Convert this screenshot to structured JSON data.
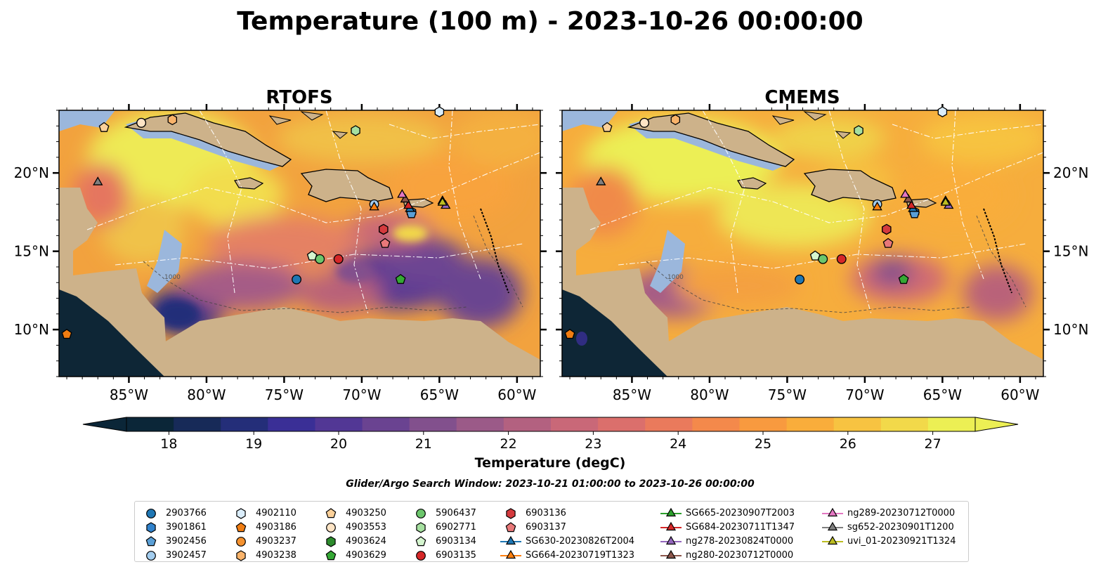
{
  "figure": {
    "title": "Temperature (100 m) - 2023-10-26 00:00:00",
    "colorbar_label": "Temperature (degC)",
    "subtitle": "Glider/Argo Search Window: 2023-10-21 01:00:00 to 2023-10-26 00:00:00"
  },
  "chart_data": [
    {
      "type": "heatmap",
      "title": "RTOFS",
      "x_ticks": [
        "85°W",
        "80°W",
        "75°W",
        "70°W",
        "65°W",
        "60°W"
      ],
      "y_ticks": [
        "10°N",
        "15°N",
        "20°N"
      ],
      "xlim": [
        -89.5,
        -58.5
      ],
      "ylim": [
        7,
        24
      ],
      "colormap": "thermal",
      "clim": [
        18,
        27
      ],
      "contour_label": "1000"
    },
    {
      "type": "heatmap",
      "title": "CMEMS",
      "x_ticks": [
        "85°W",
        "80°W",
        "75°W",
        "70°W",
        "65°W",
        "60°W"
      ],
      "y_ticks": [
        "10°N",
        "15°N",
        "20°N"
      ],
      "xlim": [
        -89.5,
        -58.5
      ],
      "ylim": [
        7,
        24
      ],
      "colormap": "thermal",
      "clim": [
        18,
        27
      ],
      "contour_label": "1000"
    }
  ],
  "colorbar": {
    "ticks": [
      "18",
      "19",
      "20",
      "21",
      "22",
      "23",
      "24",
      "25",
      "26",
      "27"
    ],
    "range": [
      17.5,
      27.5
    ],
    "colors": [
      "#0b2638",
      "#172a58",
      "#242e79",
      "#3a2f96",
      "#523795",
      "#6a4391",
      "#82508d",
      "#9b5a88",
      "#b36180",
      "#c96878",
      "#db6f6c",
      "#ea7a5c",
      "#f4894b",
      "#f89a3f",
      "#f9ad3b",
      "#f7c341",
      "#f2d94a",
      "#ecef54"
    ]
  },
  "legend": {
    "items": [
      {
        "label": "2903766",
        "marker": "circle",
        "color": "#1f77b4"
      },
      {
        "label": "3901861",
        "marker": "hexagon",
        "color": "#3182cc"
      },
      {
        "label": "3902456",
        "marker": "pentagon",
        "color": "#5a9fd6"
      },
      {
        "label": "3902457",
        "marker": "circle",
        "color": "#a3cdef"
      },
      {
        "label": "4902110",
        "marker": "hexagon",
        "color": "#dbeefc"
      },
      {
        "label": "4903186",
        "marker": "pentagon",
        "color": "#f07d12"
      },
      {
        "label": "4903237",
        "marker": "circle",
        "color": "#f5922f"
      },
      {
        "label": "4903238",
        "marker": "hexagon",
        "color": "#f9b36a"
      },
      {
        "label": "4903250",
        "marker": "pentagon",
        "color": "#fcd19a"
      },
      {
        "label": "4903553",
        "marker": "circle",
        "color": "#fde4c5"
      },
      {
        "label": "4903624",
        "marker": "hexagon",
        "color": "#2d8b2d"
      },
      {
        "label": "4903629",
        "marker": "pentagon",
        "color": "#35a835"
      },
      {
        "label": "5906437",
        "marker": "circle",
        "color": "#6cc66c"
      },
      {
        "label": "6902771",
        "marker": "hexagon",
        "color": "#a6e0a0"
      },
      {
        "label": "6903134",
        "marker": "pentagon",
        "color": "#d5f5cf"
      },
      {
        "label": "6903135",
        "marker": "circle",
        "color": "#d62728"
      },
      {
        "label": "6903136",
        "marker": "hexagon",
        "color": "#d43a3e"
      },
      {
        "label": "6903137",
        "marker": "pentagon",
        "color": "#e87879"
      },
      {
        "label": "SG630-20230826T2004",
        "marker": "triangle",
        "color": "#1f77b4"
      },
      {
        "label": "SG664-20230719T1323",
        "marker": "triangle",
        "color": "#ff7f0e"
      },
      {
        "label": "SG665-20230907T2003",
        "marker": "triangle",
        "color": "#2ca02c"
      },
      {
        "label": "SG684-20230711T1347",
        "marker": "triangle",
        "color": "#d62728"
      },
      {
        "label": "ng278-20230824T0000",
        "marker": "triangle",
        "color": "#9467bd"
      },
      {
        "label": "ng280-20230712T0000",
        "marker": "triangle",
        "color": "#8c564b"
      },
      {
        "label": "ng289-20230712T0000",
        "marker": "triangle",
        "color": "#e377c2"
      },
      {
        "label": "sg652-20230901T1200",
        "marker": "triangle",
        "color": "#7f7f7f"
      },
      {
        "label": "uvi_01-20230921T1324",
        "marker": "triangle",
        "color": "#bcbd22"
      }
    ]
  },
  "observations": [
    {
      "id": "2903766",
      "lon": -74.2,
      "lat": 13.2
    },
    {
      "id": "3901861",
      "lon": -66.8,
      "lat": 17.5
    },
    {
      "id": "3902456",
      "lon": -66.8,
      "lat": 17.4
    },
    {
      "id": "3902457",
      "lon": -69.2,
      "lat": 18.0
    },
    {
      "id": "4902110",
      "lon": -65.0,
      "lat": 23.9
    },
    {
      "id": "4903186",
      "lon": -89.0,
      "lat": 9.7
    },
    {
      "id": "4903237",
      "lon": -84.2,
      "lat": 23.2
    },
    {
      "id": "4903238",
      "lon": -82.2,
      "lat": 23.4
    },
    {
      "id": "4903250",
      "lon": -86.6,
      "lat": 22.9
    },
    {
      "id": "4903553",
      "lon": -84.2,
      "lat": 23.2
    },
    {
      "id": "4903624",
      "lon": -68.6,
      "lat": 16.4
    },
    {
      "id": "4903629",
      "lon": -67.5,
      "lat": 13.2
    },
    {
      "id": "5906437",
      "lon": -72.7,
      "lat": 14.5
    },
    {
      "id": "6902771",
      "lon": -70.4,
      "lat": 22.7
    },
    {
      "id": "6903134",
      "lon": -73.2,
      "lat": 14.7
    },
    {
      "id": "6903135",
      "lon": -71.5,
      "lat": 14.5
    },
    {
      "id": "6903136",
      "lon": -68.6,
      "lat": 16.4
    },
    {
      "id": "6903137",
      "lon": -68.5,
      "lat": 15.5
    },
    {
      "id": "SG630-20230826T2004",
      "lon": -66.9,
      "lat": 17.7
    },
    {
      "id": "SG664-20230719T1323",
      "lon": -69.2,
      "lat": 17.8
    },
    {
      "id": "SG665-20230907T2003",
      "lon": -64.8,
      "lat": 18.2
    },
    {
      "id": "SG684-20230711T1347",
      "lon": -67.0,
      "lat": 17.9
    },
    {
      "id": "ng278-20230824T0000",
      "lon": -64.6,
      "lat": 17.9
    },
    {
      "id": "ng280-20230712T0000",
      "lon": -67.2,
      "lat": 18.3
    },
    {
      "id": "ng289-20230712T0000",
      "lon": -67.4,
      "lat": 18.6
    },
    {
      "id": "sg652-20230901T1200",
      "lon": -87.0,
      "lat": 19.4
    },
    {
      "id": "uvi_01-20230921T1324",
      "lon": -64.8,
      "lat": 18.1
    }
  ]
}
